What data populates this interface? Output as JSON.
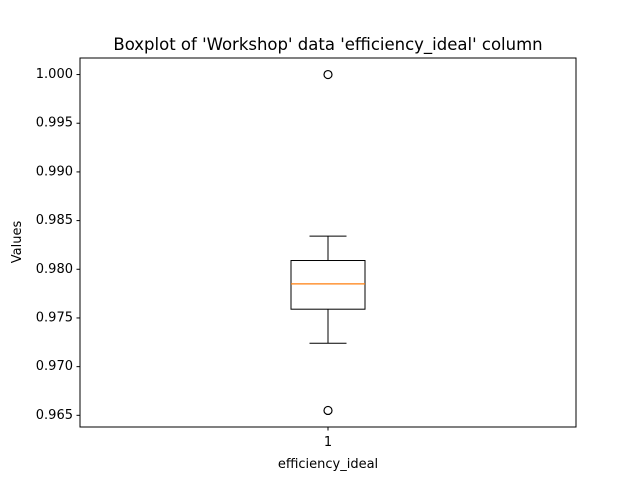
{
  "chart_data": {
    "type": "boxplot",
    "title": "Boxplot of 'Workshop' data 'efficiency_ideal' column",
    "xlabel": "efficiency_ideal",
    "ylabel": "Values",
    "categories": [
      "1"
    ],
    "ylim": [
      0.9638,
      1.0017
    ],
    "yticks": [
      0.965,
      0.97,
      0.975,
      0.98,
      0.985,
      0.99,
      0.995,
      1.0
    ],
    "ytick_labels": [
      "0.965",
      "0.970",
      "0.975",
      "0.980",
      "0.985",
      "0.990",
      "0.995",
      "1.000"
    ],
    "boxes": [
      {
        "category": "1",
        "whisker_low": 0.9724,
        "q1": 0.9759,
        "median": 0.9785,
        "q3": 0.9809,
        "whisker_high": 0.9834,
        "outliers": [
          1.0,
          0.9655
        ]
      }
    ],
    "grid": false,
    "colors": {
      "box": "#000000",
      "median": "#ff7f0e",
      "outlier": "#000000"
    }
  }
}
